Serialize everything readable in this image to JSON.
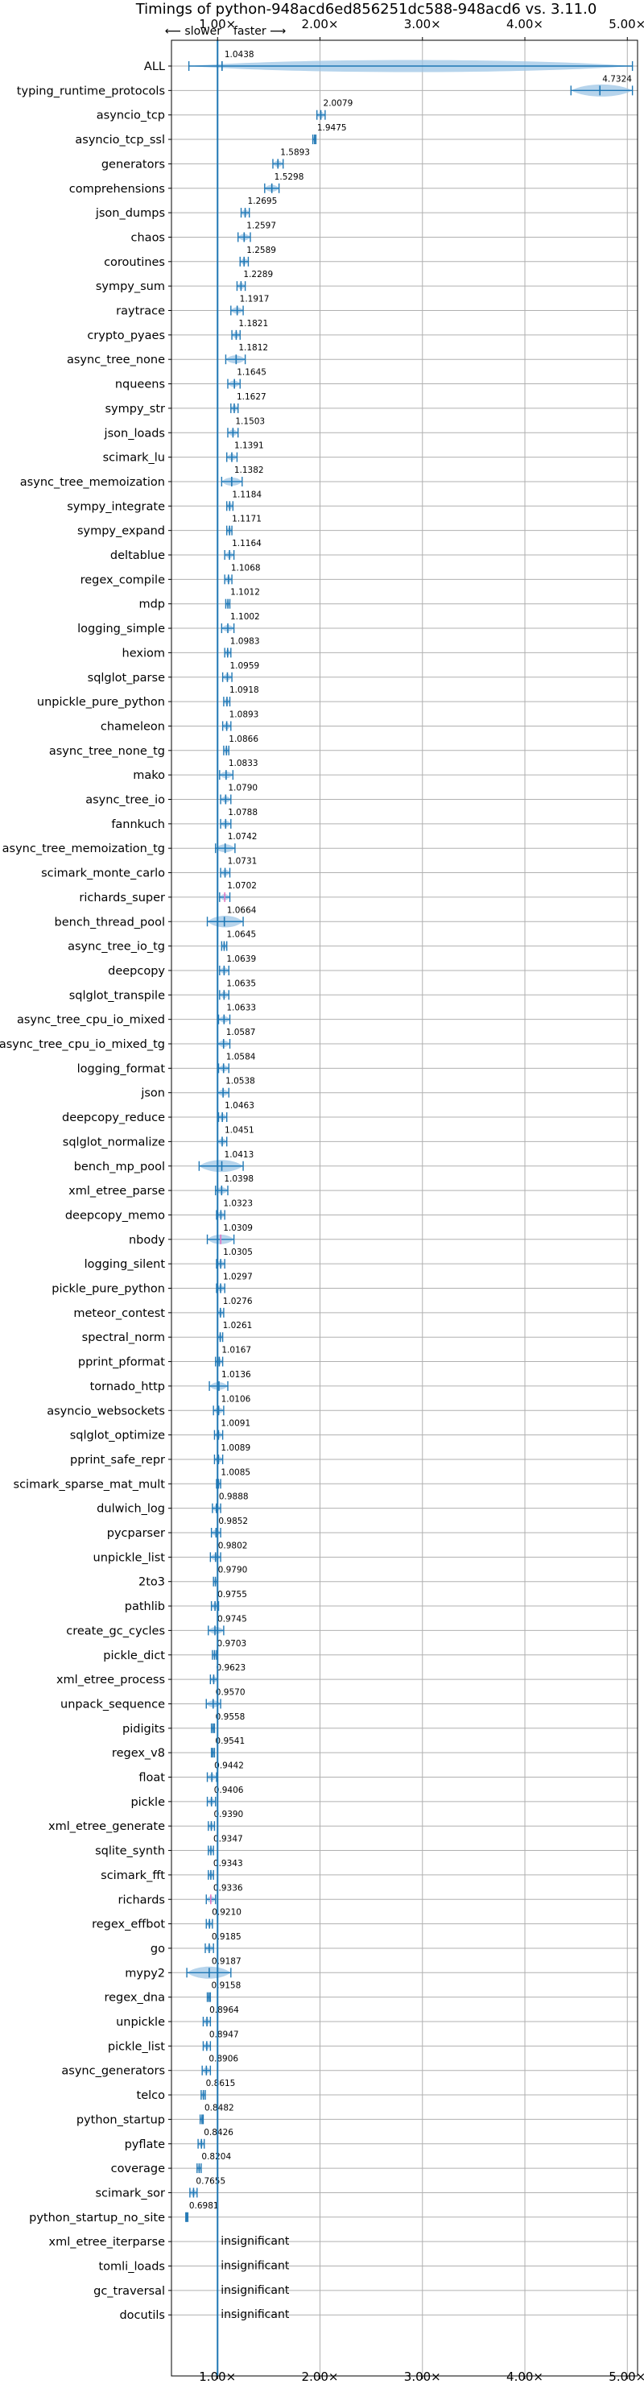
{
  "chart_data": {
    "type": "violin",
    "title": "Timings of python-948acd6ed856251dc588-948acd6 vs. 3.11.0",
    "direction": {
      "slower": "⟵ slower",
      "faster": "faster ⟶"
    },
    "xlim": [
      0.55,
      5.1
    ],
    "x_ticks": [
      1,
      2,
      3,
      4,
      5
    ],
    "x_tick_labels": [
      "1.00×",
      "2.00×",
      "3.00×",
      "4.00×",
      "5.00×"
    ],
    "reference_line": 1.0,
    "grid": true,
    "colors": {
      "violin": "#9ec5e6",
      "line": "#1f77b4",
      "significant_marker": "#e377c2"
    },
    "benchmarks": [
      {
        "name": "ALL",
        "mean": 1.0438,
        "label": "1.0438",
        "lo": 0.72,
        "hi": 5.05
      },
      {
        "name": "typing_runtime_protocols",
        "mean": 4.7324,
        "label": "4.7324",
        "lo": 4.45,
        "hi": 5.05
      },
      {
        "name": "asyncio_tcp",
        "mean": 2.0079,
        "label": "2.0079",
        "lo": 1.97,
        "hi": 2.05
      },
      {
        "name": "asyncio_tcp_ssl",
        "mean": 1.9475,
        "label": "1.9475",
        "lo": 1.93,
        "hi": 1.96
      },
      {
        "name": "generators",
        "mean": 1.5893,
        "label": "1.5893",
        "lo": 1.54,
        "hi": 1.64
      },
      {
        "name": "comprehensions",
        "mean": 1.5298,
        "label": "1.5298",
        "lo": 1.46,
        "hi": 1.6
      },
      {
        "name": "json_dumps",
        "mean": 1.2695,
        "label": "1.2695",
        "lo": 1.23,
        "hi": 1.31
      },
      {
        "name": "chaos",
        "mean": 1.2597,
        "label": "1.2597",
        "lo": 1.2,
        "hi": 1.32
      },
      {
        "name": "coroutines",
        "mean": 1.2589,
        "label": "1.2589",
        "lo": 1.22,
        "hi": 1.3
      },
      {
        "name": "sympy_sum",
        "mean": 1.2289,
        "label": "1.2289",
        "lo": 1.19,
        "hi": 1.27
      },
      {
        "name": "raytrace",
        "mean": 1.1917,
        "label": "1.1917",
        "lo": 1.13,
        "hi": 1.25
      },
      {
        "name": "crypto_pyaes",
        "mean": 1.1821,
        "label": "1.1821",
        "lo": 1.14,
        "hi": 1.22
      },
      {
        "name": "async_tree_none",
        "mean": 1.1812,
        "label": "1.1812",
        "lo": 1.08,
        "hi": 1.27
      },
      {
        "name": "nqueens",
        "mean": 1.1645,
        "label": "1.1645",
        "lo": 1.1,
        "hi": 1.22
      },
      {
        "name": "sympy_str",
        "mean": 1.1627,
        "label": "1.1627",
        "lo": 1.13,
        "hi": 1.2
      },
      {
        "name": "json_loads",
        "mean": 1.1503,
        "label": "1.1503",
        "lo": 1.1,
        "hi": 1.2
      },
      {
        "name": "scimark_lu",
        "mean": 1.1391,
        "label": "1.1391",
        "lo": 1.09,
        "hi": 1.19
      },
      {
        "name": "async_tree_memoization",
        "mean": 1.1382,
        "label": "1.1382",
        "lo": 1.04,
        "hi": 1.24
      },
      {
        "name": "sympy_integrate",
        "mean": 1.1184,
        "label": "1.1184",
        "lo": 1.09,
        "hi": 1.15
      },
      {
        "name": "sympy_expand",
        "mean": 1.1171,
        "label": "1.1171",
        "lo": 1.09,
        "hi": 1.14
      },
      {
        "name": "deltablue",
        "mean": 1.1164,
        "label": "1.1164",
        "lo": 1.07,
        "hi": 1.16
      },
      {
        "name": "regex_compile",
        "mean": 1.1068,
        "label": "1.1068",
        "lo": 1.07,
        "hi": 1.14
      },
      {
        "name": "mdp",
        "mean": 1.1012,
        "label": "1.1012",
        "lo": 1.08,
        "hi": 1.12
      },
      {
        "name": "logging_simple",
        "mean": 1.1002,
        "label": "1.1002",
        "lo": 1.04,
        "hi": 1.16
      },
      {
        "name": "hexiom",
        "mean": 1.0983,
        "label": "1.0983",
        "lo": 1.07,
        "hi": 1.13
      },
      {
        "name": "sqlglot_parse",
        "mean": 1.0959,
        "label": "1.0959",
        "lo": 1.05,
        "hi": 1.14
      },
      {
        "name": "unpickle_pure_python",
        "mean": 1.0918,
        "label": "1.0918",
        "lo": 1.06,
        "hi": 1.12
      },
      {
        "name": "chameleon",
        "mean": 1.0893,
        "label": "1.0893",
        "lo": 1.05,
        "hi": 1.13
      },
      {
        "name": "async_tree_none_tg",
        "mean": 1.0866,
        "label": "1.0866",
        "lo": 1.06,
        "hi": 1.11
      },
      {
        "name": "mako",
        "mean": 1.0833,
        "label": "1.0833",
        "lo": 1.02,
        "hi": 1.15
      },
      {
        "name": "async_tree_io",
        "mean": 1.079,
        "label": "1.0790",
        "lo": 1.03,
        "hi": 1.13
      },
      {
        "name": "fannkuch",
        "mean": 1.0788,
        "label": "1.0788",
        "lo": 1.03,
        "hi": 1.13
      },
      {
        "name": "async_tree_memoization_tg",
        "mean": 1.0742,
        "label": "1.0742",
        "lo": 0.98,
        "hi": 1.17
      },
      {
        "name": "scimark_monte_carlo",
        "mean": 1.0731,
        "label": "1.0731",
        "lo": 1.03,
        "hi": 1.12
      },
      {
        "name": "richards_super",
        "mean": 1.0702,
        "label": "1.0702",
        "lo": 1.02,
        "hi": 1.12
      },
      {
        "name": "bench_thread_pool",
        "mean": 1.0664,
        "label": "1.0664",
        "lo": 0.9,
        "hi": 1.25
      },
      {
        "name": "async_tree_io_tg",
        "mean": 1.0645,
        "label": "1.0645",
        "lo": 1.04,
        "hi": 1.09
      },
      {
        "name": "deepcopy",
        "mean": 1.0639,
        "label": "1.0639",
        "lo": 1.02,
        "hi": 1.11
      },
      {
        "name": "sqlglot_transpile",
        "mean": 1.0635,
        "label": "1.0635",
        "lo": 1.02,
        "hi": 1.11
      },
      {
        "name": "async_tree_cpu_io_mixed",
        "mean": 1.0633,
        "label": "1.0633",
        "lo": 1.01,
        "hi": 1.12
      },
      {
        "name": "async_tree_cpu_io_mixed_tg",
        "mean": 1.0587,
        "label": "1.0587",
        "lo": 1.0,
        "hi": 1.12
      },
      {
        "name": "logging_format",
        "mean": 1.0584,
        "label": "1.0584",
        "lo": 1.01,
        "hi": 1.11
      },
      {
        "name": "json",
        "mean": 1.0538,
        "label": "1.0538",
        "lo": 1.0,
        "hi": 1.11
      },
      {
        "name": "deepcopy_reduce",
        "mean": 1.0463,
        "label": "1.0463",
        "lo": 1.01,
        "hi": 1.09
      },
      {
        "name": "sqlglot_normalize",
        "mean": 1.0451,
        "label": "1.0451",
        "lo": 1.0,
        "hi": 1.09
      },
      {
        "name": "bench_mp_pool",
        "mean": 1.0413,
        "label": "1.0413",
        "lo": 0.82,
        "hi": 1.25
      },
      {
        "name": "xml_etree_parse",
        "mean": 1.0398,
        "label": "1.0398",
        "lo": 0.98,
        "hi": 1.1
      },
      {
        "name": "deepcopy_memo",
        "mean": 1.0323,
        "label": "1.0323",
        "lo": 0.99,
        "hi": 1.07
      },
      {
        "name": "nbody",
        "mean": 1.0309,
        "label": "1.0309",
        "lo": 0.9,
        "hi": 1.16
      },
      {
        "name": "logging_silent",
        "mean": 1.0305,
        "label": "1.0305",
        "lo": 0.99,
        "hi": 1.07
      },
      {
        "name": "pickle_pure_python",
        "mean": 1.0297,
        "label": "1.0297",
        "lo": 0.99,
        "hi": 1.07
      },
      {
        "name": "meteor_contest",
        "mean": 1.0276,
        "label": "1.0276",
        "lo": 1.0,
        "hi": 1.06
      },
      {
        "name": "spectral_norm",
        "mean": 1.0261,
        "label": "1.0261",
        "lo": 1.0,
        "hi": 1.05
      },
      {
        "name": "pprint_pformat",
        "mean": 1.0167,
        "label": "1.0167",
        "lo": 0.98,
        "hi": 1.05
      },
      {
        "name": "tornado_http",
        "mean": 1.0136,
        "label": "1.0136",
        "lo": 0.92,
        "hi": 1.1
      },
      {
        "name": "asyncio_websockets",
        "mean": 1.0106,
        "label": "1.0106",
        "lo": 0.96,
        "hi": 1.06
      },
      {
        "name": "sqlglot_optimize",
        "mean": 1.0091,
        "label": "1.0091",
        "lo": 0.97,
        "hi": 1.05
      },
      {
        "name": "pprint_safe_repr",
        "mean": 1.0089,
        "label": "1.0089",
        "lo": 0.97,
        "hi": 1.05
      },
      {
        "name": "scimark_sparse_mat_mult",
        "mean": 1.0085,
        "label": "1.0085",
        "lo": 0.99,
        "hi": 1.03
      },
      {
        "name": "dulwich_log",
        "mean": 0.9888,
        "label": "0.9888",
        "lo": 0.95,
        "hi": 1.03
      },
      {
        "name": "pycparser",
        "mean": 0.9852,
        "label": "0.9852",
        "lo": 0.94,
        "hi": 1.03
      },
      {
        "name": "unpickle_list",
        "mean": 0.9802,
        "label": "0.9802",
        "lo": 0.93,
        "hi": 1.03
      },
      {
        "name": "2to3",
        "mean": 0.979,
        "label": "0.9790",
        "lo": 0.96,
        "hi": 1.0
      },
      {
        "name": "pathlib",
        "mean": 0.9755,
        "label": "0.9755",
        "lo": 0.94,
        "hi": 1.01
      },
      {
        "name": "create_gc_cycles",
        "mean": 0.9745,
        "label": "0.9745",
        "lo": 0.91,
        "hi": 1.06
      },
      {
        "name": "pickle_dict",
        "mean": 0.9703,
        "label": "0.9703",
        "lo": 0.95,
        "hi": 0.99
      },
      {
        "name": "xml_etree_process",
        "mean": 0.9623,
        "label": "0.9623",
        "lo": 0.93,
        "hi": 1.0
      },
      {
        "name": "unpack_sequence",
        "mean": 0.957,
        "label": "0.9570",
        "lo": 0.89,
        "hi": 1.03
      },
      {
        "name": "pidigits",
        "mean": 0.9558,
        "label": "0.9558",
        "lo": 0.94,
        "hi": 0.97
      },
      {
        "name": "regex_v8",
        "mean": 0.9541,
        "label": "0.9541",
        "lo": 0.94,
        "hi": 0.97
      },
      {
        "name": "float",
        "mean": 0.9442,
        "label": "0.9442",
        "lo": 0.9,
        "hi": 0.99
      },
      {
        "name": "pickle",
        "mean": 0.9406,
        "label": "0.9406",
        "lo": 0.9,
        "hi": 0.98
      },
      {
        "name": "xml_etree_generate",
        "mean": 0.939,
        "label": "0.9390",
        "lo": 0.91,
        "hi": 0.97
      },
      {
        "name": "sqlite_synth",
        "mean": 0.9347,
        "label": "0.9347",
        "lo": 0.91,
        "hi": 0.96
      },
      {
        "name": "scimark_fft",
        "mean": 0.9343,
        "label": "0.9343",
        "lo": 0.91,
        "hi": 0.96
      },
      {
        "name": "richards",
        "mean": 0.9336,
        "label": "0.9336",
        "lo": 0.89,
        "hi": 0.98
      },
      {
        "name": "regex_effbot",
        "mean": 0.921,
        "label": "0.9210",
        "lo": 0.89,
        "hi": 0.95
      },
      {
        "name": "go",
        "mean": 0.9185,
        "label": "0.9185",
        "lo": 0.88,
        "hi": 0.96
      },
      {
        "name": "mypy2",
        "mean": 0.9187,
        "label": "0.9187",
        "lo": 0.7,
        "hi": 1.13
      },
      {
        "name": "regex_dna",
        "mean": 0.9158,
        "label": "0.9158",
        "lo": 0.9,
        "hi": 0.93
      },
      {
        "name": "unpickle",
        "mean": 0.8964,
        "label": "0.8964",
        "lo": 0.86,
        "hi": 0.93
      },
      {
        "name": "pickle_list",
        "mean": 0.8947,
        "label": "0.8947",
        "lo": 0.86,
        "hi": 0.93
      },
      {
        "name": "async_generators",
        "mean": 0.8906,
        "label": "0.8906",
        "lo": 0.85,
        "hi": 0.93
      },
      {
        "name": "telco",
        "mean": 0.8615,
        "label": "0.8615",
        "lo": 0.84,
        "hi": 0.88
      },
      {
        "name": "python_startup",
        "mean": 0.8482,
        "label": "0.8482",
        "lo": 0.83,
        "hi": 0.86
      },
      {
        "name": "pyflate",
        "mean": 0.8426,
        "label": "0.8426",
        "lo": 0.81,
        "hi": 0.87
      },
      {
        "name": "coverage",
        "mean": 0.8204,
        "label": "0.8204",
        "lo": 0.8,
        "hi": 0.84
      },
      {
        "name": "scimark_sor",
        "mean": 0.7655,
        "label": "0.7655",
        "lo": 0.73,
        "hi": 0.8
      },
      {
        "name": "python_startup_no_site",
        "mean": 0.6981,
        "label": "0.6981",
        "lo": 0.69,
        "hi": 0.71
      },
      {
        "name": "xml_etree_iterparse",
        "insignificant": true,
        "label": "insignificant"
      },
      {
        "name": "tomli_loads",
        "insignificant": true,
        "label": "insignificant"
      },
      {
        "name": "gc_traversal",
        "insignificant": true,
        "label": "insignificant"
      },
      {
        "name": "docutils",
        "insignificant": true,
        "label": "insignificant"
      }
    ],
    "highlighted": [
      "richards_super",
      "nbody",
      "richards"
    ]
  }
}
